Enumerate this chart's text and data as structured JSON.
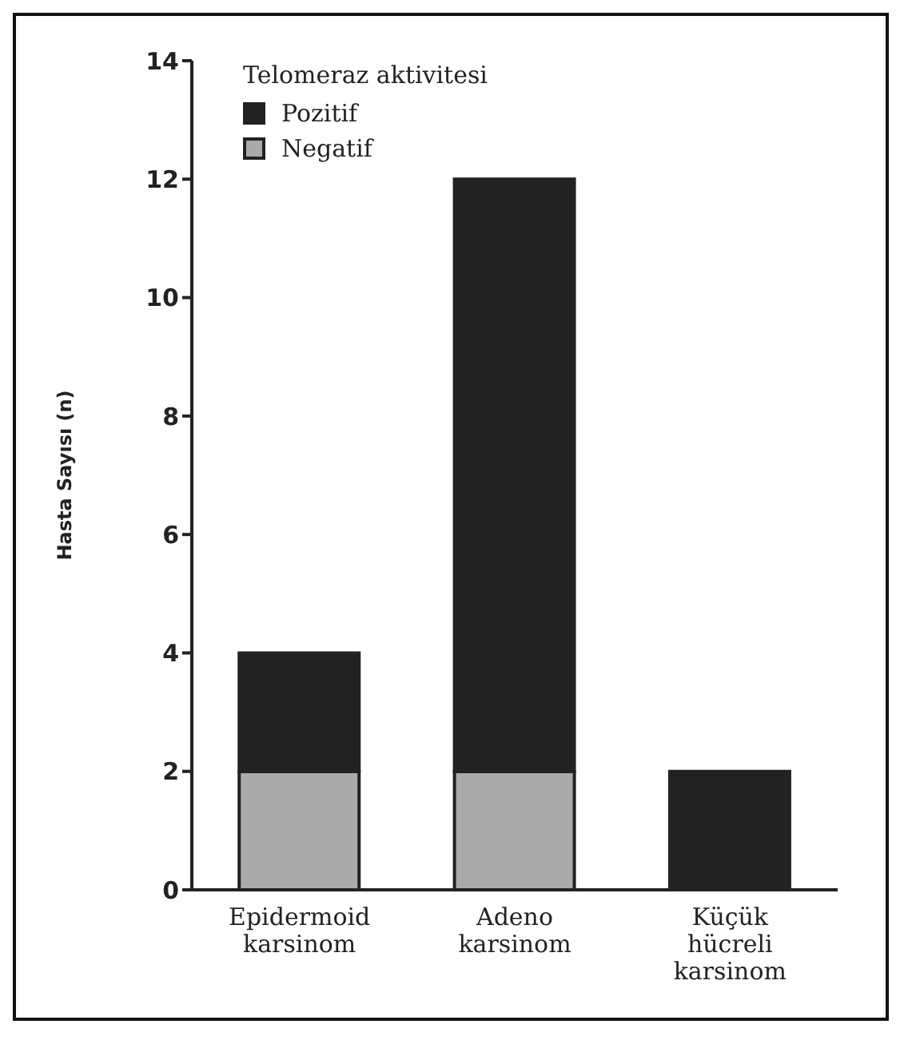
{
  "chart_data": {
    "type": "bar",
    "stacked": true,
    "ylabel": "Hasta Sayısı (n)",
    "legend_title": "Telomeraz aktivitesi",
    "categories": [
      "Epidermoid karsinom",
      "Adeno karsinom",
      "Küçük hücreli karsinom"
    ],
    "series": [
      {
        "name": "Negatif",
        "color": "#aaaaaa",
        "values": [
          2,
          2,
          0
        ]
      },
      {
        "name": "Pozitif",
        "color": "#222222",
        "values": [
          2,
          10,
          2
        ]
      }
    ],
    "ylim": [
      0,
      14
    ],
    "yticks": [
      0,
      2,
      4,
      6,
      8,
      10,
      12,
      14
    ],
    "grid": false,
    "legend": "top left"
  }
}
